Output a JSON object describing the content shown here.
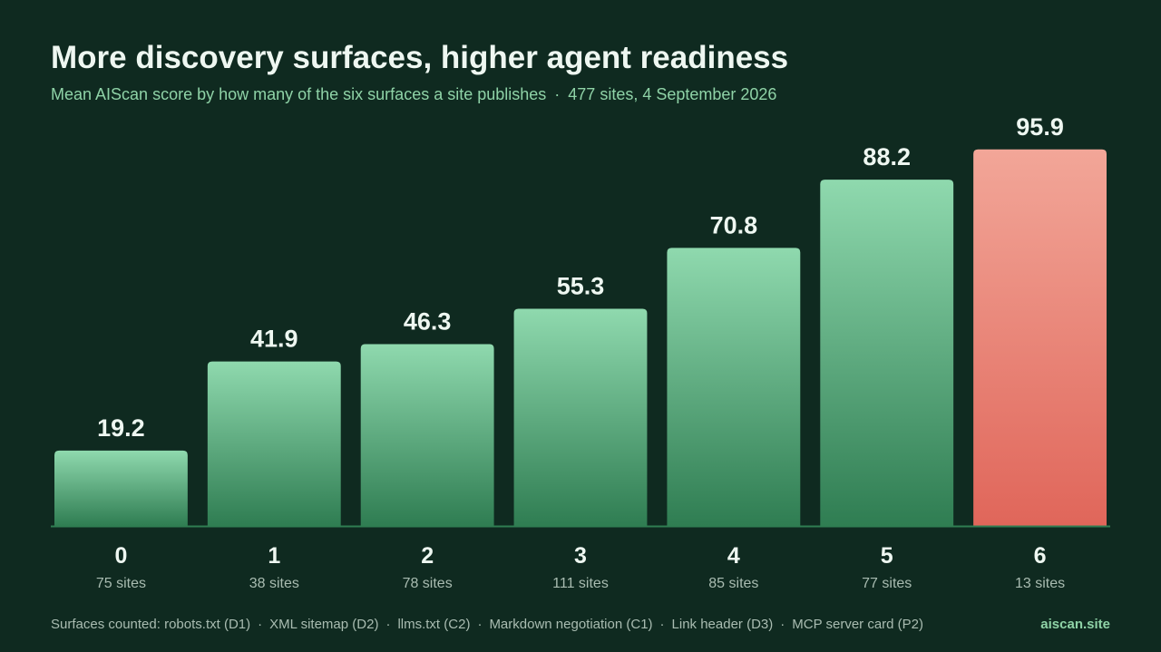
{
  "title": "More discovery surfaces, higher agent readiness",
  "subtitle": {
    "main": "Mean AIScan score by how many of the six surfaces a site publishes",
    "separator": "·",
    "meta": "477 sites, 4 September 2026"
  },
  "colors": {
    "background": "#0f2a20",
    "bar_top": "#8fd9ae",
    "bar_bottom": "#2f7d52",
    "highlight_top": "#f2a698",
    "highlight_bottom": "#e0665a",
    "text_light": "#eef7f1",
    "text_muted": "#a9bcb1",
    "accent": "#8fd3a7"
  },
  "chart_data": {
    "type": "bar",
    "title": "More discovery surfaces, higher agent readiness",
    "subtitle": "Mean AIScan score by how many of the six surfaces a site publishes · 477 sites, 4 September 2026",
    "categories": [
      "0",
      "1",
      "2",
      "3",
      "4",
      "5",
      "6"
    ],
    "values": [
      19.2,
      41.9,
      46.3,
      55.3,
      70.8,
      88.2,
      95.9
    ],
    "sublabels": [
      "75 sites",
      "38 sites",
      "78 sites",
      "111 sites",
      "85 sites",
      "77 sites",
      "13 sites"
    ],
    "highlight_index": 6,
    "xlabel": "",
    "ylabel": "",
    "ylim": [
      0,
      100
    ],
    "grid": false,
    "data_labels": true
  },
  "footer": {
    "label": "Surfaces counted:",
    "items": [
      "robots.txt (D1)",
      "XML sitemap (D2)",
      "llms.txt (C2)",
      "Markdown negotiation (C1)",
      "Link header (D3)",
      "MCP server card (P2)"
    ],
    "separator": "·",
    "brand": "aiscan.site"
  }
}
